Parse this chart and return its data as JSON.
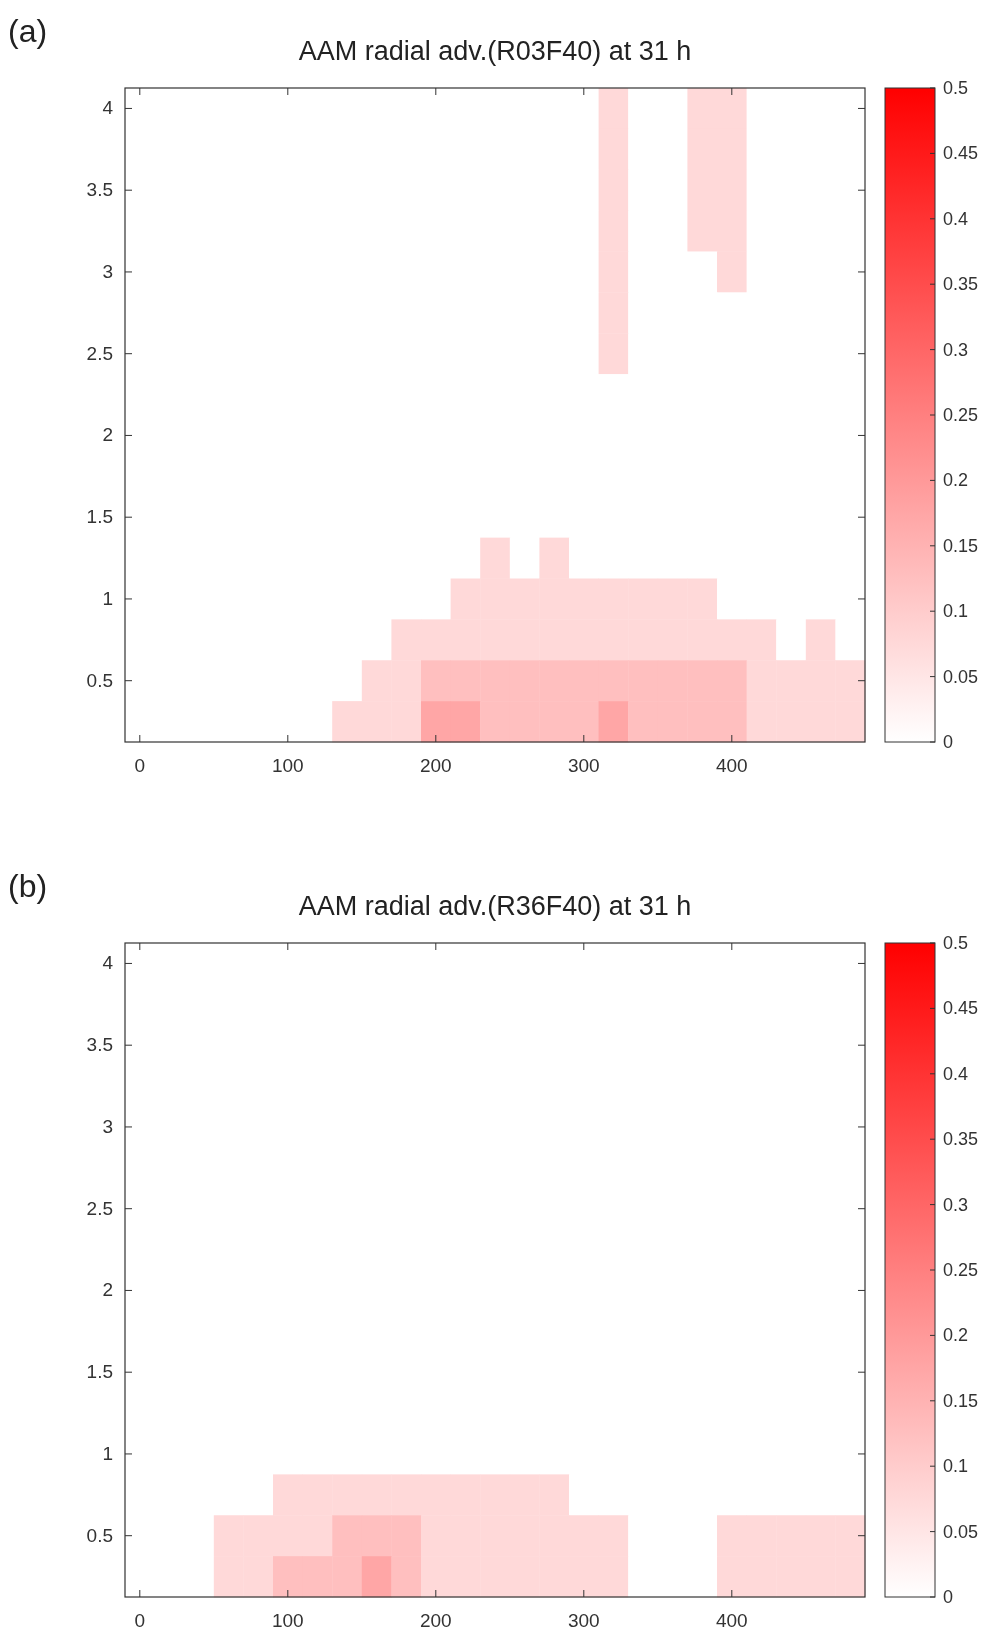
{
  "chart_data": [
    {
      "type": "heatmap",
      "title": "AAM radial adv.(R03F40) at 31 h",
      "annotations": [
        "(a)"
      ],
      "categories": [
        "0",
        null,
        null,
        null,
        null,
        "100",
        null,
        null,
        null,
        null,
        "200",
        null,
        null,
        null,
        null,
        "300",
        null,
        null,
        null,
        null,
        "400",
        null,
        null,
        null,
        null
      ],
      "y_categories": [
        "4",
        null,
        "3.5",
        null,
        "3",
        null,
        "2.5",
        null,
        "2",
        null,
        "1.5",
        null,
        "1",
        null,
        "0.5",
        null
      ],
      "clim": [
        0,
        0.5
      ],
      "cticks": [
        0,
        0.05,
        0.1,
        0.15,
        0.2,
        0.25,
        0.3,
        0.35,
        0.4,
        0.45,
        0.5
      ],
      "grid": false,
      "cells": [
        [
          0,
          0,
          0,
          0,
          0,
          0,
          0,
          0,
          0,
          0,
          0,
          0,
          0,
          0,
          0,
          0,
          0.075,
          0,
          0,
          0.075,
          0.075,
          0,
          0,
          0,
          0
        ],
        [
          0,
          0,
          0,
          0,
          0,
          0,
          0,
          0,
          0,
          0,
          0,
          0,
          0,
          0,
          0,
          0,
          0.075,
          0,
          0,
          0.075,
          0.075,
          0,
          0,
          0,
          0
        ],
        [
          0,
          0,
          0,
          0,
          0,
          0,
          0,
          0,
          0,
          0,
          0,
          0,
          0,
          0,
          0,
          0,
          0.075,
          0,
          0,
          0.075,
          0.075,
          0,
          0,
          0,
          0
        ],
        [
          0,
          0,
          0,
          0,
          0,
          0,
          0,
          0,
          0,
          0,
          0,
          0,
          0,
          0,
          0,
          0,
          0.075,
          0,
          0,
          0.075,
          0.075,
          0,
          0,
          0,
          0
        ],
        [
          0,
          0,
          0,
          0,
          0,
          0,
          0,
          0,
          0,
          0,
          0,
          0,
          0,
          0,
          0,
          0,
          0.075,
          0,
          0,
          0,
          0.075,
          0,
          0,
          0,
          0
        ],
        [
          0,
          0,
          0,
          0,
          0,
          0,
          0,
          0,
          0,
          0,
          0,
          0,
          0,
          0,
          0,
          0,
          0.075,
          0,
          0,
          0,
          0,
          0,
          0,
          0,
          0
        ],
        [
          0,
          0,
          0,
          0,
          0,
          0,
          0,
          0,
          0,
          0,
          0,
          0,
          0,
          0,
          0,
          0,
          0.075,
          0,
          0,
          0,
          0,
          0,
          0,
          0,
          0
        ],
        [
          0,
          0,
          0,
          0,
          0,
          0,
          0,
          0,
          0,
          0,
          0,
          0,
          0,
          0,
          0,
          0,
          0,
          0,
          0,
          0,
          0,
          0,
          0,
          0,
          0
        ],
        [
          0,
          0,
          0,
          0,
          0,
          0,
          0,
          0,
          0,
          0,
          0,
          0,
          0,
          0,
          0,
          0,
          0,
          0,
          0,
          0,
          0,
          0,
          0,
          0,
          0
        ],
        [
          0,
          0,
          0,
          0,
          0,
          0,
          0,
          0,
          0,
          0,
          0,
          0,
          0,
          0,
          0,
          0,
          0,
          0,
          0,
          0,
          0,
          0,
          0,
          0,
          0
        ],
        [
          0,
          0,
          0,
          0,
          0,
          0,
          0,
          0,
          0,
          0,
          0,
          0,
          0,
          0,
          0,
          0,
          0,
          0,
          0,
          0,
          0,
          0,
          0,
          0,
          0
        ],
        [
          0,
          0,
          0,
          0,
          0,
          0,
          0,
          0,
          0,
          0,
          0,
          0,
          0.075,
          0,
          0.075,
          0,
          0,
          0,
          0,
          0,
          0,
          0,
          0,
          0,
          0
        ],
        [
          0,
          0,
          0,
          0,
          0,
          0,
          0,
          0,
          0,
          0,
          0,
          0.075,
          0.075,
          0.075,
          0.075,
          0.075,
          0.075,
          0.075,
          0.075,
          0.075,
          0,
          0,
          0,
          0,
          0
        ],
        [
          0,
          0,
          0,
          0,
          0,
          0,
          0,
          0,
          0,
          0.075,
          0.075,
          0.075,
          0.075,
          0.075,
          0.075,
          0.075,
          0.075,
          0.075,
          0.075,
          0.075,
          0.075,
          0.075,
          0,
          0.075,
          0
        ],
        [
          0,
          0,
          0,
          0,
          0,
          0,
          0,
          0,
          0.075,
          0.075,
          0.125,
          0.125,
          0.125,
          0.125,
          0.125,
          0.125,
          0.125,
          0.125,
          0.125,
          0.125,
          0.125,
          0.075,
          0.075,
          0.075,
          0.075
        ],
        [
          0,
          0,
          0,
          0,
          0,
          0,
          0,
          0.075,
          0.075,
          0.075,
          0.175,
          0.175,
          0.125,
          0.125,
          0.125,
          0.125,
          0.175,
          0.125,
          0.125,
          0.125,
          0.125,
          0.075,
          0.075,
          0.075,
          0.075
        ]
      ]
    },
    {
      "type": "heatmap",
      "title": "AAM radial adv.(R36F40) at 31 h",
      "annotations": [
        "(b)"
      ],
      "categories": [
        "0",
        null,
        null,
        null,
        null,
        "100",
        null,
        null,
        null,
        null,
        "200",
        null,
        null,
        null,
        null,
        "300",
        null,
        null,
        null,
        null,
        "400",
        null,
        null,
        null,
        null
      ],
      "y_categories": [
        "4",
        null,
        "3.5",
        null,
        "3",
        null,
        "2.5",
        null,
        "2",
        null,
        "1.5",
        null,
        "1",
        null,
        "0.5",
        null
      ],
      "clim": [
        0,
        0.5
      ],
      "cticks": [
        0,
        0.05,
        0.1,
        0.15,
        0.2,
        0.25,
        0.3,
        0.35,
        0.4,
        0.45,
        0.5
      ],
      "grid": false,
      "cells": [
        [
          0,
          0,
          0,
          0,
          0,
          0,
          0,
          0,
          0,
          0,
          0,
          0,
          0,
          0,
          0,
          0,
          0,
          0,
          0,
          0,
          0,
          0,
          0,
          0,
          0
        ],
        [
          0,
          0,
          0,
          0,
          0,
          0,
          0,
          0,
          0,
          0,
          0,
          0,
          0,
          0,
          0,
          0,
          0,
          0,
          0,
          0,
          0,
          0,
          0,
          0,
          0
        ],
        [
          0,
          0,
          0,
          0,
          0,
          0,
          0,
          0,
          0,
          0,
          0,
          0,
          0,
          0,
          0,
          0,
          0,
          0,
          0,
          0,
          0,
          0,
          0,
          0,
          0
        ],
        [
          0,
          0,
          0,
          0,
          0,
          0,
          0,
          0,
          0,
          0,
          0,
          0,
          0,
          0,
          0,
          0,
          0,
          0,
          0,
          0,
          0,
          0,
          0,
          0,
          0
        ],
        [
          0,
          0,
          0,
          0,
          0,
          0,
          0,
          0,
          0,
          0,
          0,
          0,
          0,
          0,
          0,
          0,
          0,
          0,
          0,
          0,
          0,
          0,
          0,
          0,
          0
        ],
        [
          0,
          0,
          0,
          0,
          0,
          0,
          0,
          0,
          0,
          0,
          0,
          0,
          0,
          0,
          0,
          0,
          0,
          0,
          0,
          0,
          0,
          0,
          0,
          0,
          0
        ],
        [
          0,
          0,
          0,
          0,
          0,
          0,
          0,
          0,
          0,
          0,
          0,
          0,
          0,
          0,
          0,
          0,
          0,
          0,
          0,
          0,
          0,
          0,
          0,
          0,
          0
        ],
        [
          0,
          0,
          0,
          0,
          0,
          0,
          0,
          0,
          0,
          0,
          0,
          0,
          0,
          0,
          0,
          0,
          0,
          0,
          0,
          0,
          0,
          0,
          0,
          0,
          0
        ],
        [
          0,
          0,
          0,
          0,
          0,
          0,
          0,
          0,
          0,
          0,
          0,
          0,
          0,
          0,
          0,
          0,
          0,
          0,
          0,
          0,
          0,
          0,
          0,
          0,
          0
        ],
        [
          0,
          0,
          0,
          0,
          0,
          0,
          0,
          0,
          0,
          0,
          0,
          0,
          0,
          0,
          0,
          0,
          0,
          0,
          0,
          0,
          0,
          0,
          0,
          0,
          0
        ],
        [
          0,
          0,
          0,
          0,
          0,
          0,
          0,
          0,
          0,
          0,
          0,
          0,
          0,
          0,
          0,
          0,
          0,
          0,
          0,
          0,
          0,
          0,
          0,
          0,
          0
        ],
        [
          0,
          0,
          0,
          0,
          0,
          0,
          0,
          0,
          0,
          0,
          0,
          0,
          0,
          0,
          0,
          0,
          0,
          0,
          0,
          0,
          0,
          0,
          0,
          0,
          0
        ],
        [
          0,
          0,
          0,
          0,
          0,
          0,
          0,
          0,
          0,
          0,
          0,
          0,
          0,
          0,
          0,
          0,
          0,
          0,
          0,
          0,
          0,
          0,
          0,
          0,
          0
        ],
        [
          0,
          0,
          0,
          0,
          0,
          0.075,
          0.075,
          0.075,
          0.075,
          0.075,
          0.075,
          0.075,
          0.075,
          0.075,
          0.075,
          0,
          0,
          0,
          0,
          0,
          0,
          0,
          0,
          0,
          0
        ],
        [
          0,
          0,
          0,
          0.075,
          0.075,
          0.075,
          0.075,
          0.125,
          0.125,
          0.125,
          0.075,
          0.075,
          0.075,
          0.075,
          0.075,
          0.075,
          0.075,
          0,
          0,
          0,
          0.075,
          0.075,
          0.075,
          0.075,
          0.075
        ],
        [
          0,
          0,
          0,
          0.075,
          0.075,
          0.125,
          0.125,
          0.125,
          0.175,
          0.125,
          0.075,
          0.075,
          0.075,
          0.075,
          0.075,
          0.075,
          0.075,
          0,
          0,
          0,
          0.075,
          0.075,
          0.075,
          0.075,
          0.075
        ]
      ]
    }
  ]
}
